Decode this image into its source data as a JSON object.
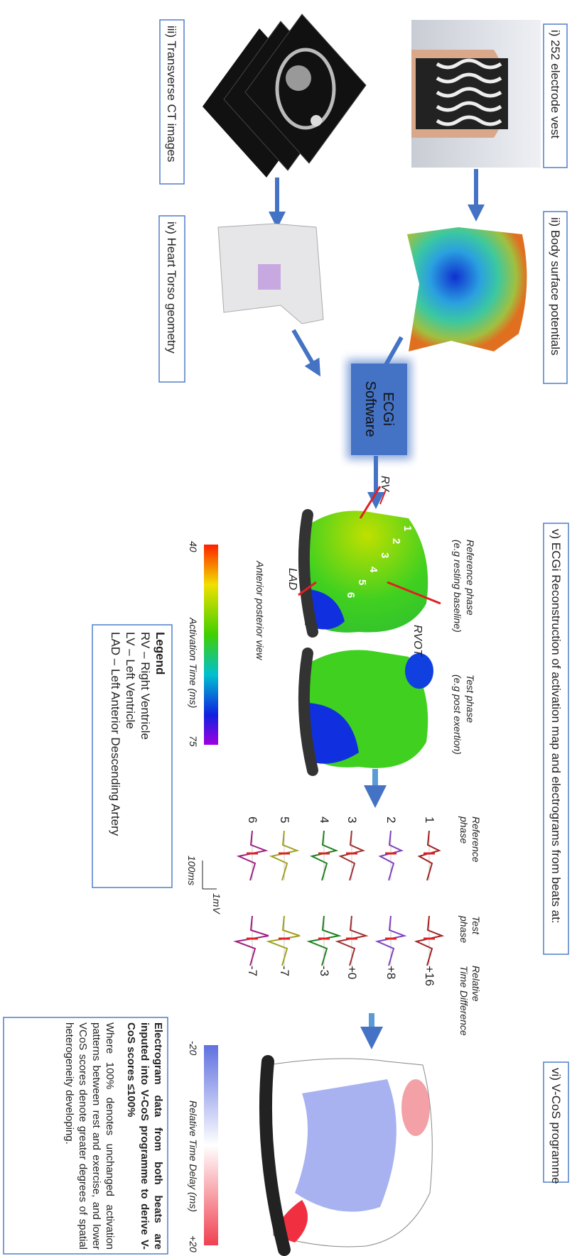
{
  "panels": {
    "vest": {
      "label": "i) 252 electrode vest"
    },
    "ct": {
      "label": "iii) Transverse CT images"
    },
    "bsp": {
      "label": "ii) Body surface potentials"
    },
    "torso": {
      "label": "iv) Heart Torso geometry"
    },
    "software": {
      "label": [
        "ECGi",
        "Software"
      ]
    },
    "reconstruction": {
      "label": "v) ECGi Reconstruction of activation map and electrograms from beats at:",
      "reference": [
        "Reference phase",
        "(e.g resting baseline)"
      ],
      "test": [
        "Test phase",
        "(e.g post exertion)"
      ],
      "markers": [
        "RV",
        "RVOT",
        "LAD"
      ],
      "segments": [
        "1",
        "2",
        "3",
        "4",
        "5",
        "6"
      ],
      "view": "Anterior posterior view",
      "colorbar": {
        "min": "40",
        "max": "75",
        "title": "Activation Time (ms)"
      },
      "legend": {
        "title": "Legend",
        "items": [
          "RV – Right Ventricle",
          "LV – Left Ventricle",
          "LAD – Left Anterior Descending Artery"
        ]
      },
      "electrograms": {
        "headers": [
          [
            "Reference",
            "phase"
          ],
          [
            "Test",
            "phase"
          ],
          [
            "Relative",
            "Time Difference"
          ]
        ],
        "rows": [
          "1",
          "2",
          "3",
          "4",
          "5",
          "6"
        ],
        "differences": [
          "+16",
          "+8",
          "+0",
          "-3",
          "-7",
          "-7"
        ],
        "scale": {
          "time": "100ms",
          "voltage": "1mV"
        }
      }
    },
    "vcos": {
      "label": "vi) V-CoS programme",
      "colorbar": {
        "min": "-20",
        "max": "+20",
        "title": "Relative Time Delay (ms)"
      },
      "text": {
        "bold": "Electrogram data from both beats are inputed into V-CoS programme to derive V-CoS scores ≤100%",
        "body": "Where 100% denotes unchanged activation patterns between rest and exercise, and lower VCoS scores denote greater degrees of spatial heterogeneity developing."
      }
    }
  }
}
